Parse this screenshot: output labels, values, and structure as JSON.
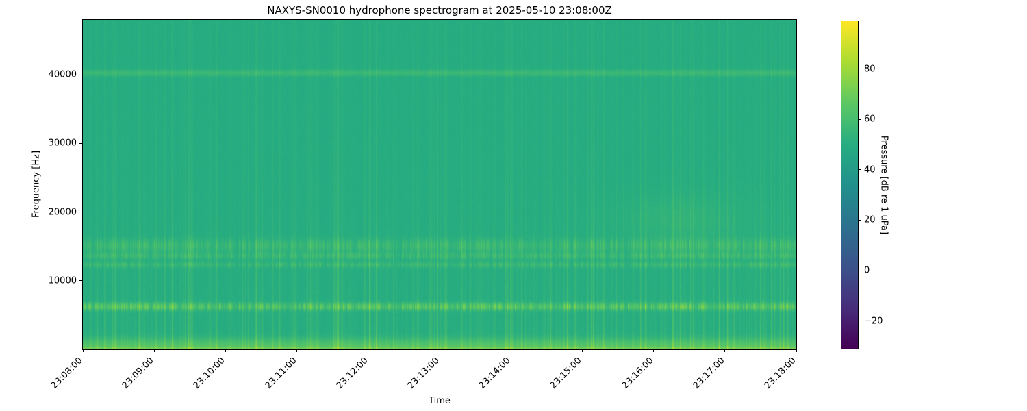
{
  "chart_data": {
    "type": "heatmap",
    "title": "NAXYS-SN0010 hydrophone spectrogram at 2025-05-10 23:08:00Z",
    "xlabel": "Time",
    "ylabel": "Frequency [Hz]",
    "x_tick_labels": [
      "23:08:00",
      "23:09:00",
      "23:10:00",
      "23:11:00",
      "23:12:00",
      "23:13:00",
      "23:14:00",
      "23:15:00",
      "23:16:00",
      "23:17:00",
      "23:18:00"
    ],
    "x_range": {
      "start": "23:08:00",
      "end": "23:18:00",
      "duration_seconds": 600
    },
    "y_ticks_hz": [
      10000,
      20000,
      30000,
      40000
    ],
    "freq_range_hz": [
      0,
      48000
    ],
    "grid": false,
    "colorbar": {
      "label": "Pressure [dB re 1 uPa]",
      "ticks_db": [
        -20,
        0,
        20,
        40,
        60,
        80
      ],
      "range_db": [
        -31,
        99
      ],
      "colormap": "viridis",
      "viridis_stops": [
        "#440154",
        "#472d7b",
        "#3b528b",
        "#2c718e",
        "#21918c",
        "#27ad81",
        "#5cc863",
        "#aadc32",
        "#fde725"
      ],
      "position": "right"
    },
    "background_level_db": 49.4,
    "features": [
      {
        "name": "tonal-band-6khz",
        "pattern": "pulsed",
        "center_hz": 6200,
        "bandwidth_hz": 900,
        "peak_db": 74,
        "pulse_floor": 0.22,
        "smooth": 0.75
      },
      {
        "name": "band-12khz",
        "pattern": "pulsed",
        "center_hz": 12300,
        "bandwidth_hz": 700,
        "peak_db": 61,
        "pulse_floor": 0.08,
        "smooth": 0.7
      },
      {
        "name": "band-13-6khz",
        "pattern": "pulsed",
        "center_hz": 13600,
        "bandwidth_hz": 800,
        "peak_db": 61,
        "pulse_floor": 0.08,
        "smooth": 0.7
      },
      {
        "name": "band-15khz",
        "pattern": "pulsed",
        "center_hz": 15100,
        "bandwidth_hz": 1600,
        "peak_db": 62,
        "pulse_floor": 0.1,
        "smooth": 0.72
      },
      {
        "name": "tone-40khz",
        "pattern": "continuous",
        "center_hz": 40300,
        "bandwidth_hz": 800,
        "peak_db": 56
      },
      {
        "name": "low-freq-strip",
        "pattern": "continuous",
        "center_hz": 400,
        "bandwidth_hz": 1900,
        "peak_db": 63,
        "bottom_line_db": 6
      },
      {
        "name": "broadband-clicks",
        "pattern": "vertical-striations",
        "max_boost_db": 14,
        "falloff_hz": 16000
      },
      {
        "name": "diffuse-patch-2316",
        "pattern": "diffuse",
        "time_center_fraction": 0.835,
        "time_sigma_fraction": 0.062,
        "center_hz": 19000,
        "bandwidth_hz": 6000,
        "peak_db": 54
      }
    ]
  }
}
